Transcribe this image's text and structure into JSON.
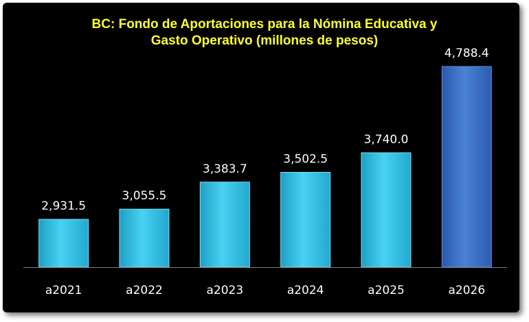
{
  "chart_data": {
    "type": "bar",
    "title_lines": [
      "BC: Fondo de Aportaciones para la Nómina Educativa y",
      "Gasto Operativo (millones de pesos)"
    ],
    "categories": [
      "a2021",
      "a2022",
      "a2023",
      "a2024",
      "a2025",
      "a2026"
    ],
    "values": [
      2931.5,
      3055.5,
      3383.7,
      3502.5,
      3740.0,
      4788.4
    ],
    "value_labels": [
      "2,931.5",
      "3,055.5",
      "3,383.7",
      "3,502.5",
      "3,740.0",
      "4,788.4"
    ],
    "xlabel": "",
    "ylabel": "",
    "ylim": [
      2350,
      4788.4
    ],
    "grid": false,
    "legend": "none",
    "colors": {
      "background": "#000000",
      "title": "#ffff33",
      "bar": "#3cc4e6",
      "bar_highlight": "#3a6ec4",
      "text": "#ffffff",
      "axis": "#7f7f7f"
    }
  }
}
